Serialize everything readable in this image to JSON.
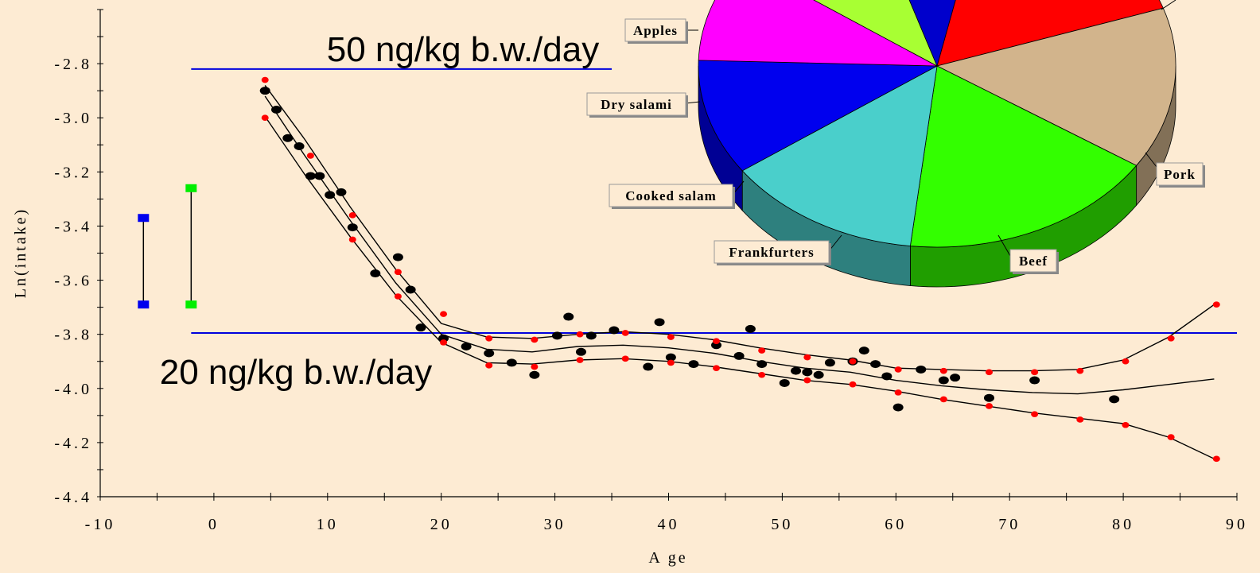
{
  "chart_data": [
    {
      "type": "scatter",
      "xlabel": "A ge",
      "ylabel": "Ln(intake)",
      "xlim": [
        -10,
        90
      ],
      "ylim": [
        -4.4,
        -2.6
      ],
      "x_ticks": [
        "-10",
        "0",
        "10",
        "20",
        "30",
        "40",
        "50",
        "60",
        "70",
        "80",
        "90"
      ],
      "y_ticks": [
        "-2.8",
        "-3.0",
        "-3.2",
        "-3.4",
        "-3.6",
        "-3.8",
        "-4.0",
        "-4.2",
        "-4.4"
      ],
      "grid": false,
      "reference_lines": [
        {
          "label": "50 ng/kg b.w./day",
          "y": -2.82,
          "x_from": -2,
          "x_to": 35,
          "color": "#0000DD"
        },
        {
          "label": "20 ng/kg b.w./day",
          "y": -3.795,
          "x_from": -2,
          "x_to": 90,
          "color": "#0000DD"
        }
      ],
      "error_bars": [
        {
          "x": -6.2,
          "y_low": -3.69,
          "y_high": -3.37,
          "color": "#0000EE"
        },
        {
          "x": -2.0,
          "y_low": -3.69,
          "y_high": -3.26,
          "color": "#00EE00"
        }
      ],
      "series": [
        {
          "color": "#000000",
          "points": [
            [
              4.5,
              -2.9
            ],
            [
              5.5,
              -2.97
            ],
            [
              6.5,
              -3.075
            ],
            [
              7.5,
              -3.105
            ],
            [
              8.5,
              -3.215
            ],
            [
              9.3,
              -3.215
            ],
            [
              10.2,
              -3.285
            ],
            [
              11.2,
              -3.275
            ],
            [
              12.2,
              -3.405
            ],
            [
              14.2,
              -3.575
            ],
            [
              16.2,
              -3.515
            ],
            [
              17.3,
              -3.635
            ],
            [
              18.2,
              -3.775
            ],
            [
              20.2,
              -3.815
            ],
            [
              22.2,
              -3.845
            ],
            [
              24.2,
              -3.87
            ],
            [
              26.2,
              -3.905
            ],
            [
              28.2,
              -3.95
            ],
            [
              30.2,
              -3.805
            ],
            [
              31.2,
              -3.735
            ],
            [
              32.3,
              -3.865
            ],
            [
              33.2,
              -3.805
            ],
            [
              35.2,
              -3.785
            ],
            [
              38.2,
              -3.92
            ],
            [
              39.2,
              -3.755
            ],
            [
              40.2,
              -3.885
            ],
            [
              42.2,
              -3.91
            ],
            [
              44.2,
              -3.84
            ],
            [
              46.2,
              -3.88
            ],
            [
              47.2,
              -3.78
            ],
            [
              48.2,
              -3.91
            ],
            [
              50.2,
              -3.98
            ],
            [
              51.2,
              -3.935
            ],
            [
              52.2,
              -3.94
            ],
            [
              53.2,
              -3.95
            ],
            [
              54.2,
              -3.905
            ],
            [
              56.2,
              -3.9
            ],
            [
              57.2,
              -3.86
            ],
            [
              58.2,
              -3.91
            ],
            [
              59.2,
              -3.955
            ],
            [
              60.2,
              -4.07
            ],
            [
              62.2,
              -3.93
            ],
            [
              64.2,
              -3.97
            ],
            [
              65.2,
              -3.96
            ],
            [
              68.2,
              -4.035
            ],
            [
              72.2,
              -3.97
            ],
            [
              79.2,
              -4.04
            ]
          ]
        },
        {
          "color": "#FF0000",
          "points": [
            [
              4.5,
              -2.86
            ],
            [
              4.5,
              -3.0
            ],
            [
              8.5,
              -3.14
            ],
            [
              12.2,
              -3.36
            ],
            [
              12.2,
              -3.45
            ],
            [
              16.2,
              -3.57
            ],
            [
              16.2,
              -3.66
            ],
            [
              20.2,
              -3.725
            ],
            [
              20.2,
              -3.83
            ],
            [
              24.2,
              -3.815
            ],
            [
              24.2,
              -3.915
            ],
            [
              28.2,
              -3.82
            ],
            [
              28.2,
              -3.92
            ],
            [
              32.2,
              -3.8
            ],
            [
              32.2,
              -3.895
            ],
            [
              36.2,
              -3.795
            ],
            [
              36.2,
              -3.89
            ],
            [
              40.2,
              -3.81
            ],
            [
              40.2,
              -3.905
            ],
            [
              44.2,
              -3.825
            ],
            [
              44.2,
              -3.925
            ],
            [
              48.2,
              -3.86
            ],
            [
              48.2,
              -3.95
            ],
            [
              52.2,
              -3.885
            ],
            [
              52.2,
              -3.97
            ],
            [
              56.2,
              -3.9
            ],
            [
              56.2,
              -3.985
            ],
            [
              60.2,
              -3.93
            ],
            [
              60.2,
              -4.015
            ],
            [
              64.2,
              -3.935
            ],
            [
              64.2,
              -4.04
            ],
            [
              68.2,
              -3.94
            ],
            [
              68.2,
              -4.065
            ],
            [
              72.2,
              -3.94
            ],
            [
              72.2,
              -4.095
            ],
            [
              76.2,
              -3.935
            ],
            [
              76.2,
              -4.115
            ],
            [
              80.2,
              -3.9
            ],
            [
              80.2,
              -4.135
            ],
            [
              84.2,
              -3.815
            ],
            [
              84.2,
              -4.18
            ],
            [
              88.2,
              -3.69
            ],
            [
              88.2,
              -4.26
            ]
          ]
        }
      ],
      "fit_lines": [
        {
          "points": [
            [
              4.5,
              -2.88
            ],
            [
              8,
              -3.08
            ],
            [
              12,
              -3.33
            ],
            [
              16,
              -3.56
            ],
            [
              20,
              -3.76
            ],
            [
              24,
              -3.81
            ],
            [
              28,
              -3.815
            ],
            [
              32,
              -3.8
            ],
            [
              36,
              -3.79
            ],
            [
              40,
              -3.8
            ],
            [
              44,
              -3.82
            ],
            [
              48,
              -3.85
            ],
            [
              52,
              -3.875
            ],
            [
              56,
              -3.895
            ],
            [
              60,
              -3.925
            ],
            [
              64,
              -3.93
            ],
            [
              68,
              -3.935
            ],
            [
              72,
              -3.935
            ],
            [
              76,
              -3.93
            ],
            [
              80,
              -3.895
            ],
            [
              84,
              -3.81
            ],
            [
              88,
              -3.69
            ]
          ]
        },
        {
          "points": [
            [
              4.5,
              -2.92
            ],
            [
              8,
              -3.14
            ],
            [
              12,
              -3.38
            ],
            [
              16,
              -3.61
            ],
            [
              20,
              -3.8
            ],
            [
              24,
              -3.855
            ],
            [
              28,
              -3.865
            ],
            [
              32,
              -3.845
            ],
            [
              36,
              -3.84
            ],
            [
              40,
              -3.85
            ],
            [
              44,
              -3.87
            ],
            [
              48,
              -3.9
            ],
            [
              52,
              -3.925
            ],
            [
              56,
              -3.94
            ],
            [
              60,
              -3.97
            ],
            [
              64,
              -3.99
            ],
            [
              68,
              -4.005
            ],
            [
              72,
              -4.015
            ],
            [
              76,
              -4.02
            ],
            [
              80,
              -4.005
            ],
            [
              84,
              -3.985
            ],
            [
              88,
              -3.965
            ]
          ]
        },
        {
          "points": [
            [
              4.5,
              -2.995
            ],
            [
              8,
              -3.21
            ],
            [
              12,
              -3.44
            ],
            [
              16,
              -3.655
            ],
            [
              20,
              -3.83
            ],
            [
              24,
              -3.905
            ],
            [
              28,
              -3.91
            ],
            [
              32,
              -3.895
            ],
            [
              36,
              -3.89
            ],
            [
              40,
              -3.9
            ],
            [
              44,
              -3.92
            ],
            [
              48,
              -3.945
            ],
            [
              52,
              -3.97
            ],
            [
              56,
              -3.985
            ],
            [
              60,
              -4.01
            ],
            [
              64,
              -4.04
            ],
            [
              68,
              -4.065
            ],
            [
              72,
              -4.09
            ],
            [
              76,
              -4.11
            ],
            [
              80,
              -4.13
            ],
            [
              84,
              -4.18
            ],
            [
              88,
              -4.26
            ]
          ]
        }
      ]
    },
    {
      "type": "pie",
      "style": "3d",
      "labels": [
        "Apples",
        "Dry salami",
        "Cooked salam",
        "Frankfurters",
        "Beef",
        "Pork"
      ],
      "slices": [
        {
          "label": "",
          "color": "#FF0000",
          "value": 16
        },
        {
          "label": "",
          "color": "#D2B48C",
          "value": 14
        },
        {
          "label": "Pork",
          "color": "#33FF00",
          "value": 17
        },
        {
          "label": "Beef",
          "color": "#4ACFCB",
          "value": 13
        },
        {
          "label": "Frankfurters",
          "color": "#0000EE",
          "value": 10
        },
        {
          "label": "Cooked salam",
          "color": "#FF00FF",
          "value": 9
        },
        {
          "label": "Dry salami",
          "color": "#A8FF33",
          "value": 10
        },
        {
          "label": "Apples",
          "color": "#0000CC",
          "value": 8
        }
      ]
    }
  ]
}
